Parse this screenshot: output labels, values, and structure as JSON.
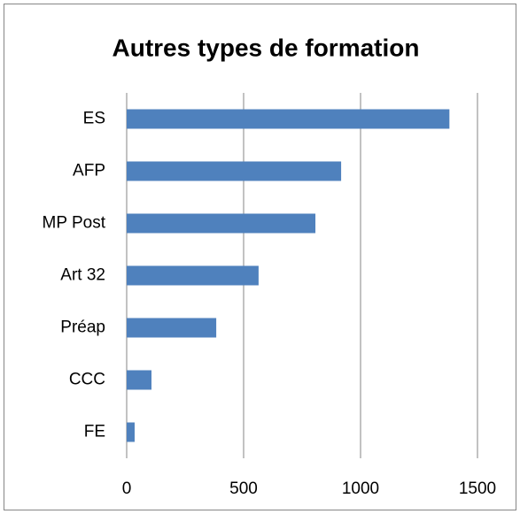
{
  "chart_data": {
    "type": "bar",
    "orientation": "horizontal",
    "title": "Autres types de formation",
    "categories": [
      "ES",
      "AFP",
      "MP Post",
      "Art 32",
      "Préap",
      "CCC",
      "FE"
    ],
    "values": [
      1380,
      917,
      807,
      564,
      383,
      106,
      34
    ],
    "color": "#4f81bd",
    "xlim": [
      0,
      1500
    ],
    "xticks": [
      0,
      500,
      1000,
      1500
    ],
    "grid": true
  }
}
